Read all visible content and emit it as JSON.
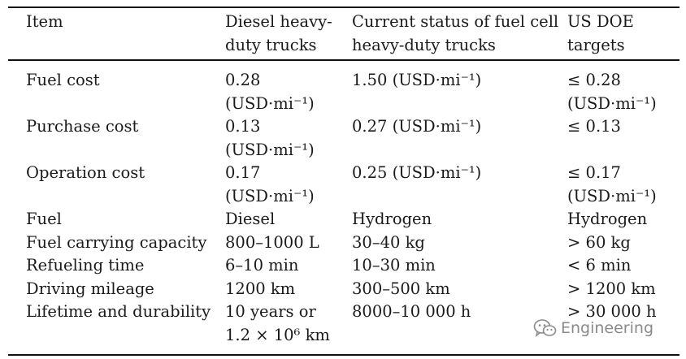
{
  "headers": {
    "item": "Item",
    "diesel": [
      "Diesel heavy-",
      "duty trucks"
    ],
    "fuel_cell": [
      "Current status of fuel cell",
      "heavy-duty trucks"
    ],
    "doe": [
      "US DOE",
      "targets"
    ]
  },
  "rows": [
    {
      "item": [
        "Fuel cost"
      ],
      "diesel": [
        "0.28",
        "(USD·mi⁻¹)"
      ],
      "fuel_cell": [
        "1.50 (USD·mi⁻¹)"
      ],
      "doe": [
        "≤ 0.28",
        "(USD·mi⁻¹)"
      ]
    },
    {
      "item": [
        "Purchase cost"
      ],
      "diesel": [
        "0.13",
        "(USD·mi⁻¹)"
      ],
      "fuel_cell": [
        "0.27 (USD·mi⁻¹)"
      ],
      "doe": [
        "≤ 0.13"
      ]
    },
    {
      "item": [
        "Operation cost"
      ],
      "diesel": [
        "0.17",
        "(USD·mi⁻¹)"
      ],
      "fuel_cell": [
        "0.25 (USD·mi⁻¹)"
      ],
      "doe": [
        "≤ 0.17",
        "(USD·mi⁻¹)"
      ]
    },
    {
      "item": [
        "Fuel"
      ],
      "diesel": [
        "Diesel"
      ],
      "fuel_cell": [
        "Hydrogen"
      ],
      "doe": [
        "Hydrogen"
      ]
    },
    {
      "item": [
        "Fuel carrying capacity"
      ],
      "diesel": [
        "800–1000 L"
      ],
      "fuel_cell": [
        "30–40 kg"
      ],
      "doe": [
        "> 60 kg"
      ]
    },
    {
      "item": [
        "Refueling time"
      ],
      "diesel": [
        "6–10 min"
      ],
      "fuel_cell": [
        "10–30 min"
      ],
      "doe": [
        "< 6 min"
      ]
    },
    {
      "item": [
        "Driving mileage"
      ],
      "diesel": [
        "1200 km"
      ],
      "fuel_cell": [
        "300–500 km"
      ],
      "doe": [
        "> 1200 km"
      ]
    },
    {
      "item": [
        "Lifetime and durability"
      ],
      "diesel": [
        "10 years or",
        "1.2 × 10⁶ km"
      ],
      "fuel_cell": [
        "8000–10 000 h"
      ],
      "doe": [
        "> 30 000 h"
      ]
    }
  ],
  "watermark": {
    "text": "Engineering",
    "icon": "wechat-icon"
  }
}
